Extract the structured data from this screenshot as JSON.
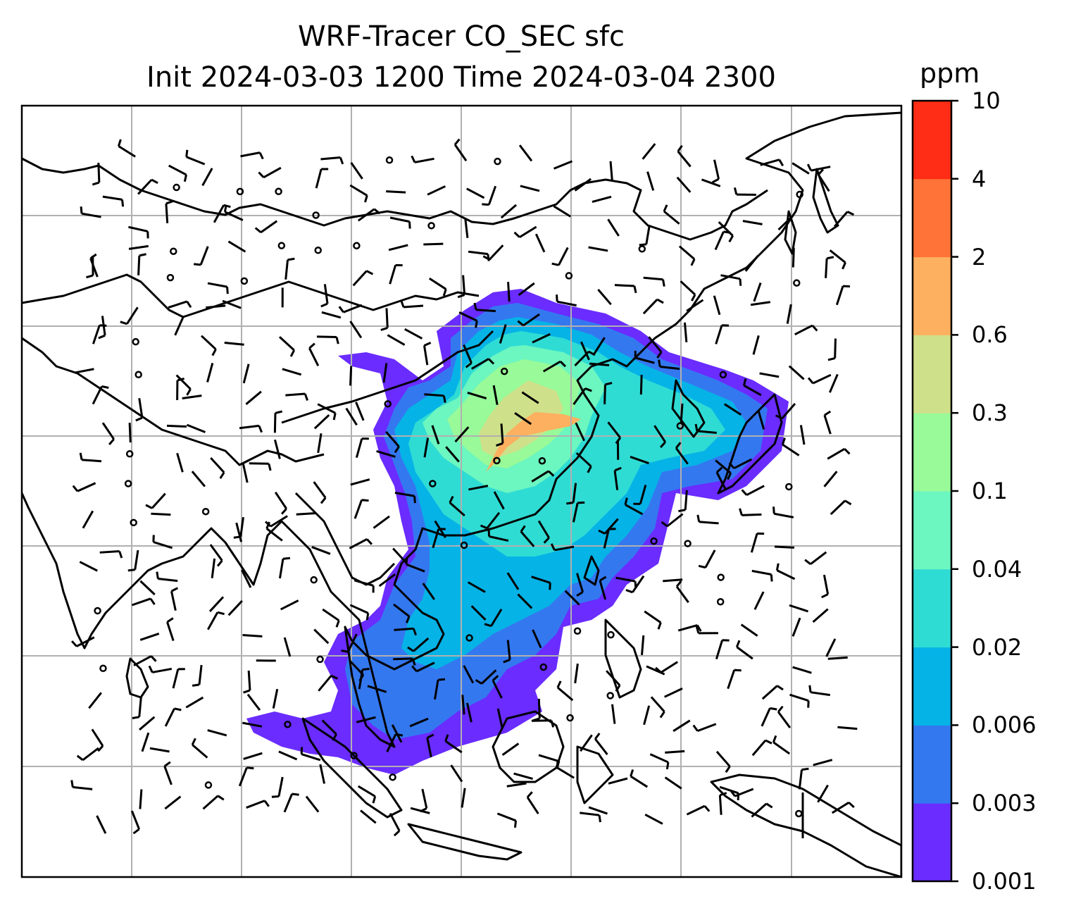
{
  "title": {
    "line1": "WRF-Tracer CO_SEC sfc",
    "line2": "Init 2024-03-03 1200 Time 2024-03-04 2300"
  },
  "colorbar": {
    "units": "ppm",
    "tick_labels": [
      "0.001",
      "0.003",
      "0.006",
      "0.02",
      "0.04",
      "0.1",
      "0.3",
      "0.6",
      "2",
      "4",
      "10"
    ],
    "colors": [
      "#6a2cff",
      "#3478f0",
      "#06b3e6",
      "#2fdcd4",
      "#6cf6c0",
      "#98fa98",
      "#cfe08a",
      "#fdb05f",
      "#ff7238",
      "#ff2d15"
    ]
  },
  "map": {
    "grid": true,
    "frame_color": "#000000",
    "gridline_color": "#b0b0b0"
  }
}
